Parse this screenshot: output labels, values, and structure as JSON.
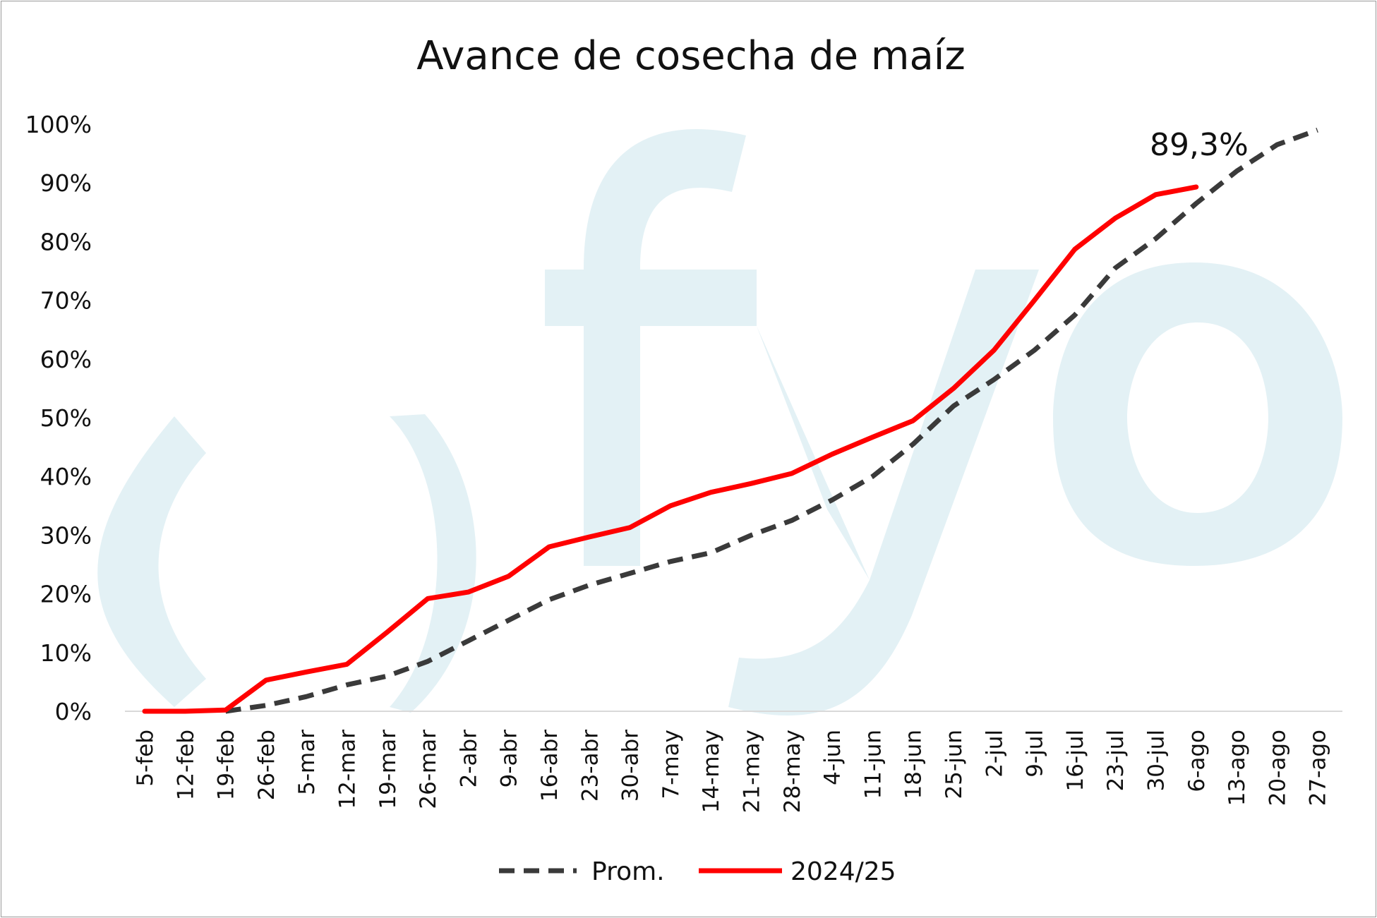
{
  "chart_data": {
    "type": "line",
    "title": "Avance de cosecha de maíz",
    "categories": [
      "5-feb",
      "12-feb",
      "19-feb",
      "26-feb",
      "5-mar",
      "12-mar",
      "19-mar",
      "26-mar",
      "2-abr",
      "9-abr",
      "16-abr",
      "23-abr",
      "30-abr",
      "7-may",
      "14-may",
      "21-may",
      "28-may",
      "4-jun",
      "11-jun",
      "18-jun",
      "25-jun",
      "2-jul",
      "9-jul",
      "16-jul",
      "23-jul",
      "30-jul",
      "6-ago",
      "13-ago",
      "20-ago",
      "27-ago"
    ],
    "y_ticks": [
      "0%",
      "10%",
      "20%",
      "30%",
      "40%",
      "50%",
      "60%",
      "70%",
      "80%",
      "90%",
      "100%"
    ],
    "ylim": [
      0,
      100
    ],
    "series": [
      {
        "name": "Prom.",
        "color": "#3a3a3a",
        "style": "dashed",
        "values": [
          null,
          null,
          0.0,
          1.0,
          2.5,
          4.5,
          6.0,
          8.5,
          12.0,
          15.5,
          19.0,
          21.5,
          23.5,
          25.5,
          27.0,
          30.0,
          32.5,
          36.0,
          40.0,
          45.5,
          52.0,
          56.5,
          61.5,
          67.5,
          75.5,
          80.5,
          86.5,
          92.0,
          96.5,
          99.0
        ]
      },
      {
        "name": "2024/25",
        "color": "#ff0000",
        "style": "solid",
        "values": [
          0.0,
          0.0,
          0.2,
          5.3,
          6.7,
          8.0,
          13.5,
          19.2,
          20.3,
          23.0,
          28.0,
          29.7,
          31.3,
          35.0,
          37.3,
          38.8,
          40.5,
          43.8,
          46.7,
          49.5,
          55.0,
          61.5,
          70.0,
          78.7,
          84.0,
          88.0,
          89.3,
          null,
          null,
          null
        ]
      }
    ],
    "annotation": {
      "text": "89,3%",
      "category": "6-ago",
      "value": 89.3
    },
    "legend": {
      "position": "bottom-center"
    },
    "grid": false,
    "colors": {
      "axis": "#d9d9d9",
      "watermark": "#e3f1f5"
    },
    "watermark": "ofyo"
  }
}
